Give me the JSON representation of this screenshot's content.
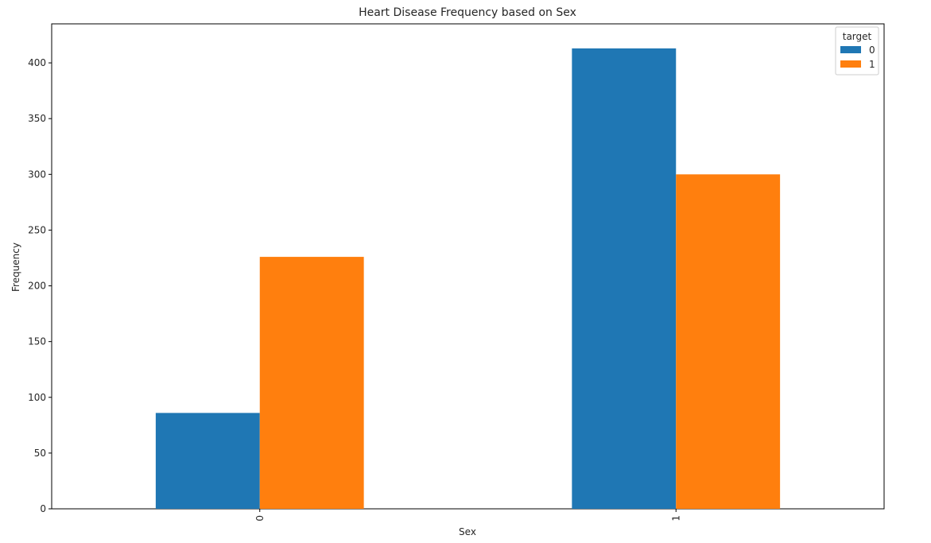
{
  "chart_data": {
    "type": "bar",
    "title": "Heart Disease Frequency based on Sex",
    "xlabel": "Sex",
    "ylabel": "Frequency",
    "categories": [
      "0",
      "1"
    ],
    "series": [
      {
        "name": "0",
        "values": [
          86,
          413
        ],
        "color": "#1f77b4"
      },
      {
        "name": "1",
        "values": [
          226,
          300
        ],
        "color": "#ff7f0e"
      }
    ],
    "ylim": [
      0,
      435
    ],
    "yticks": [
      0,
      50,
      100,
      150,
      200,
      250,
      300,
      350,
      400
    ],
    "legend": {
      "title": "target",
      "placement": "top-right"
    },
    "grid": false
  }
}
